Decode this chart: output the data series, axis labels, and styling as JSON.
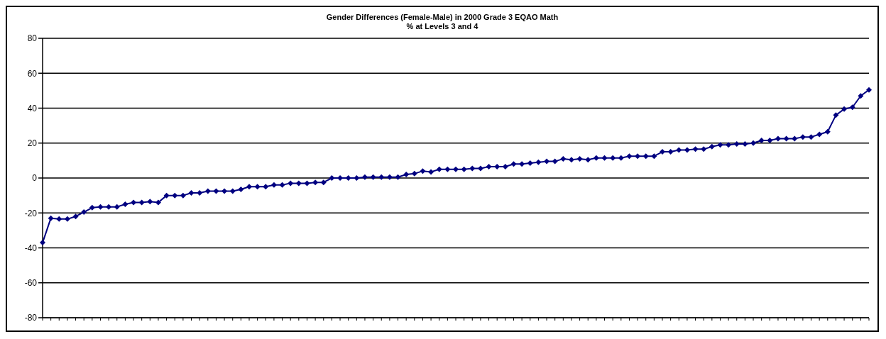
{
  "chart_data": {
    "type": "line",
    "title": "Gender Differences (Female-Male) in 2000 Grade 3 EQAO Math",
    "subtitle": "% at Levels 3 and 4",
    "categories": [
      null,
      null,
      null,
      null,
      null,
      null,
      null,
      null,
      null,
      null,
      null,
      null,
      null,
      null,
      null,
      null,
      null,
      null,
      null,
      null,
      null,
      null,
      null,
      null,
      null,
      null,
      null,
      null,
      null,
      null,
      null,
      null,
      null,
      null,
      null,
      null,
      null,
      null,
      null,
      null,
      null,
      null,
      null,
      null,
      null,
      null,
      null,
      null,
      null,
      null,
      null,
      null,
      null,
      null,
      null,
      null,
      null,
      null,
      null,
      null,
      null,
      null,
      null,
      null,
      null,
      null,
      null,
      null,
      null,
      null,
      null,
      null,
      null,
      null,
      null,
      null,
      null,
      null,
      null,
      null,
      null,
      null,
      null,
      null,
      null,
      null,
      null,
      null,
      null,
      null,
      null,
      null,
      null,
      null,
      null,
      null,
      null,
      null,
      null,
      null,
      null
    ],
    "series": [
      {
        "color": "#000080",
        "values": [
          -37,
          -23,
          -23.5,
          -23.5,
          -22,
          -19.5,
          -17,
          -16.5,
          -16.5,
          -16.5,
          -15,
          -14,
          -14,
          -13.5,
          -14,
          -10,
          -10,
          -10,
          -8.5,
          -8.5,
          -7.5,
          -7.5,
          -7.5,
          -7.5,
          -6.5,
          -5,
          -5,
          -5,
          -4,
          -4,
          -3,
          -3,
          -3,
          -2.5,
          -2.5,
          0,
          0,
          0,
          0,
          0.5,
          0.5,
          0.5,
          0.5,
          0.5,
          2,
          2.5,
          4,
          3.5,
          5,
          5,
          5,
          5,
          5.5,
          5.5,
          6.5,
          6.5,
          6.5,
          8,
          8,
          8.5,
          9,
          9.5,
          9.5,
          11,
          10.5,
          11,
          10.5,
          11.5,
          11.5,
          11.5,
          11.5,
          12.5,
          12.5,
          12.5,
          12.5,
          15,
          15,
          16,
          16,
          16.5,
          16.5,
          18,
          19,
          19,
          19.5,
          19.5,
          20,
          21.5,
          21.5,
          22.5,
          22.5,
          22.5,
          23.5,
          23.5,
          25,
          26.5,
          36,
          39.5,
          40.5,
          47,
          50.5
        ]
      }
    ],
    "ylim": [
      -80,
      80
    ],
    "yticks": [
      -80,
      -60,
      -40,
      -20,
      0,
      20,
      40,
      60,
      80
    ],
    "grid": "y",
    "marker": "diamond",
    "line_style": "solid",
    "tick_labels": "y"
  }
}
